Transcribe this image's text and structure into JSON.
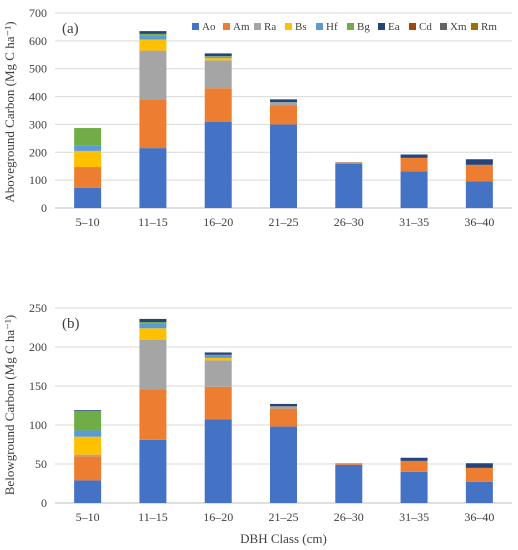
{
  "colors": {
    "Ao": "#4472C4",
    "Am": "#ED7D31",
    "Ra": "#A5A5A5",
    "Bs": "#FFC000",
    "Hf": "#5B9BD5",
    "Bg": "#70AD47",
    "Ea": "#264478",
    "Cd": "#9E480E",
    "Xm": "#636363",
    "Rm": "#997300",
    "gridline": "#D9D9D9",
    "axis": "#BFBFBF"
  },
  "legend": {
    "items": [
      "Ao",
      "Am",
      "Ra",
      "Bs",
      "Hf",
      "Bg",
      "Ea",
      "Cd",
      "Xm",
      "Rm"
    ]
  },
  "chart_data": [
    {
      "type": "bar",
      "stacked": true,
      "panel_label": "(a)",
      "ylabel": "Aboveground Carbon (Mg C ha⁻¹)",
      "xlabel": "",
      "ylim": [
        0,
        700
      ],
      "yticks": [
        0,
        100,
        200,
        300,
        400,
        500,
        600,
        700
      ],
      "grid": true,
      "legend_position": "top-right",
      "categories": [
        "5–10",
        "11–15",
        "16–20",
        "21–25",
        "26–30",
        "31–35",
        "36–40"
      ],
      "series": [
        {
          "name": "Ao",
          "values": [
            72,
            215,
            310,
            300,
            158,
            132,
            95
          ]
        },
        {
          "name": "Am",
          "values": [
            75,
            175,
            120,
            68,
            5,
            48,
            60
          ]
        },
        {
          "name": "Ra",
          "values": [
            0,
            175,
            100,
            12,
            2,
            0,
            0
          ]
        },
        {
          "name": "Bs",
          "values": [
            58,
            40,
            8,
            0,
            0,
            0,
            0
          ]
        },
        {
          "name": "Hf",
          "values": [
            20,
            15,
            5,
            0,
            0,
            0,
            0
          ]
        },
        {
          "name": "Bg",
          "values": [
            62,
            5,
            2,
            0,
            0,
            0,
            0
          ]
        },
        {
          "name": "Ea",
          "values": [
            0,
            10,
            10,
            10,
            0,
            12,
            20
          ]
        },
        {
          "name": "Cd",
          "values": [
            0,
            0,
            0,
            0,
            0,
            0,
            0
          ]
        },
        {
          "name": "Xm",
          "values": [
            0,
            0,
            0,
            0,
            0,
            0,
            0
          ]
        },
        {
          "name": "Rm",
          "values": [
            0,
            0,
            0,
            0,
            0,
            0,
            0
          ]
        }
      ]
    },
    {
      "type": "bar",
      "stacked": true,
      "panel_label": "(b)",
      "ylabel": "Belowground Carbon (Mg C ha⁻¹)",
      "xlabel": "DBH Class (cm)",
      "ylim": [
        0,
        250
      ],
      "yticks": [
        0,
        50,
        100,
        150,
        200,
        250
      ],
      "grid": true,
      "legend_position": "none",
      "categories": [
        "5–10",
        "11–15",
        "16–20",
        "21–25",
        "26–30",
        "31–35",
        "36–40"
      ],
      "series": [
        {
          "name": "Ao",
          "values": [
            29,
            81,
            107,
            98,
            49,
            40,
            27
          ]
        },
        {
          "name": "Am",
          "values": [
            31,
            65,
            42,
            23,
            2,
            14,
            18
          ]
        },
        {
          "name": "Ra",
          "values": [
            2,
            63,
            34,
            3,
            0,
            0,
            0
          ]
        },
        {
          "name": "Bs",
          "values": [
            23,
            15,
            3,
            0,
            0,
            0,
            0
          ]
        },
        {
          "name": "Hf",
          "values": [
            8,
            6,
            3,
            0,
            0,
            0,
            0
          ]
        },
        {
          "name": "Bg",
          "values": [
            25,
            2,
            1,
            0,
            0,
            0,
            0
          ]
        },
        {
          "name": "Ea",
          "values": [
            1,
            4,
            3,
            3,
            0,
            4,
            6
          ]
        },
        {
          "name": "Cd",
          "values": [
            0,
            0,
            0,
            0,
            0,
            0,
            0
          ]
        },
        {
          "name": "Xm",
          "values": [
            0,
            0,
            0,
            0,
            0,
            0,
            0
          ]
        },
        {
          "name": "Rm",
          "values": [
            0,
            0,
            0,
            0,
            0,
            0,
            0
          ]
        }
      ]
    }
  ]
}
